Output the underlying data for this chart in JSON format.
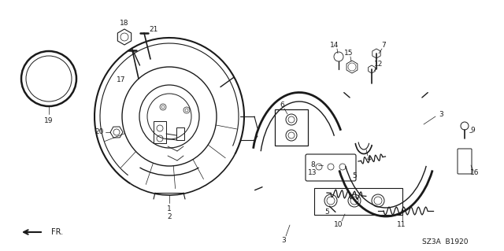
{
  "bg_color": "#ffffff",
  "line_color": "#1a1a1a",
  "diagram_code": "SZ3A  B1920",
  "fr_label": "FR.",
  "figsize": [
    6.4,
    3.19
  ],
  "dpi": 100
}
